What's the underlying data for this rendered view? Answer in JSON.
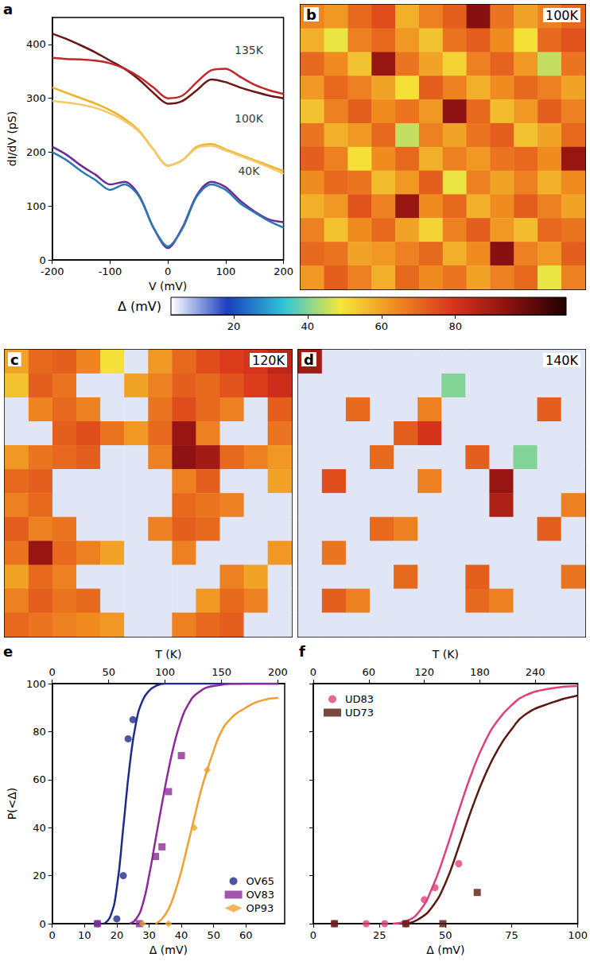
{
  "chart_data": [
    {
      "type": "line",
      "panel": "a",
      "xlabel": "V (mV)",
      "ylabel": "dI/dV (pS)",
      "xlim": [
        -200,
        200
      ],
      "xticks": [
        -200,
        -100,
        0,
        100,
        200
      ],
      "ylim": [
        0,
        450
      ],
      "yticks": [
        0,
        100,
        200,
        300,
        400
      ],
      "grid": false,
      "x": [
        -200,
        -175,
        -150,
        -125,
        -100,
        -75,
        -50,
        -25,
        0,
        25,
        50,
        75,
        100,
        125,
        150,
        175,
        200
      ],
      "series": [
        {
          "color": "#6e1414",
          "values": [
            420,
            410,
            398,
            385,
            370,
            355,
            335,
            310,
            290,
            295,
            315,
            335,
            330,
            320,
            312,
            305,
            300
          ]
        },
        {
          "color": "#c0282a",
          "values": [
            375,
            373,
            372,
            370,
            365,
            355,
            340,
            320,
            300,
            305,
            330,
            352,
            355,
            340,
            325,
            315,
            308
          ]
        },
        {
          "color": "#f0b020",
          "values": [
            320,
            310,
            300,
            290,
            278,
            262,
            240,
            205,
            175,
            185,
            210,
            215,
            205,
            195,
            185,
            175,
            165
          ]
        },
        {
          "color": "#f5c86a",
          "values": [
            295,
            292,
            288,
            282,
            272,
            258,
            238,
            205,
            175,
            185,
            208,
            212,
            203,
            193,
            183,
            172,
            160
          ]
        },
        {
          "color": "#6a2a9a",
          "values": [
            210,
            195,
            175,
            158,
            140,
            145,
            120,
            60,
            22,
            60,
            120,
            145,
            135,
            110,
            90,
            75,
            70
          ]
        },
        {
          "color": "#2a7ab0",
          "values": [
            200,
            185,
            165,
            148,
            130,
            140,
            118,
            60,
            25,
            58,
            118,
            140,
            130,
            105,
            88,
            72,
            60
          ]
        }
      ],
      "annotations": [
        {
          "text": "135K",
          "x": 140,
          "y": 390
        },
        {
          "text": "100K",
          "x": 140,
          "y": 262
        },
        {
          "text": "40K",
          "x": 140,
          "y": 165
        }
      ]
    },
    {
      "type": "heatmap",
      "panel": "b",
      "title": "100K",
      "cells": [
        [
          65,
          62,
          70,
          75,
          58,
          66,
          72,
          95,
          68,
          60,
          66,
          70
        ],
        [
          58,
          48,
          66,
          70,
          62,
          55,
          68,
          72,
          64,
          50,
          70,
          74
        ],
        [
          70,
          64,
          55,
          92,
          68,
          60,
          52,
          66,
          71,
          62,
          45,
          68
        ],
        [
          62,
          70,
          66,
          60,
          50,
          72,
          66,
          58,
          64,
          70,
          66,
          60
        ],
        [
          55,
          66,
          72,
          64,
          68,
          62,
          94,
          70,
          56,
          62,
          72,
          66
        ],
        [
          68,
          58,
          62,
          70,
          45,
          66,
          60,
          68,
          72,
          55,
          60,
          70
        ],
        [
          72,
          66,
          50,
          64,
          70,
          58,
          66,
          62,
          68,
          70,
          64,
          92
        ],
        [
          64,
          70,
          68,
          56,
          62,
          72,
          48,
          66,
          60,
          66,
          58,
          64
        ],
        [
          58,
          62,
          74,
          66,
          92,
          64,
          70,
          58,
          64,
          72,
          66,
          60
        ],
        [
          66,
          55,
          64,
          70,
          60,
          52,
          66,
          72,
          62,
          56,
          70,
          68
        ],
        [
          70,
          68,
          60,
          62,
          66,
          70,
          58,
          64,
          95,
          66,
          62,
          72
        ],
        [
          62,
          72,
          66,
          58,
          70,
          64,
          68,
          60,
          66,
          70,
          48,
          66
        ]
      ]
    },
    {
      "type": "colorbar",
      "title": "Δ (mV)",
      "range": [
        3,
        110
      ],
      "ticks": [
        20,
        40,
        60,
        80
      ]
    },
    {
      "type": "heatmap",
      "panel": "c",
      "title": "120K",
      "cells": [
        [
          60,
          70,
          72,
          65,
          50,
          5,
          62,
          70,
          75,
          78,
          80,
          85
        ],
        [
          55,
          72,
          68,
          5,
          5,
          60,
          66,
          72,
          70,
          74,
          78,
          82
        ],
        [
          5,
          65,
          70,
          66,
          5,
          5,
          68,
          75,
          70,
          66,
          5,
          72
        ],
        [
          5,
          5,
          72,
          75,
          68,
          62,
          70,
          92,
          66,
          5,
          5,
          68
        ],
        [
          62,
          68,
          70,
          72,
          5,
          5,
          66,
          94,
          90,
          70,
          66,
          62
        ],
        [
          70,
          72,
          5,
          5,
          5,
          5,
          5,
          66,
          72,
          5,
          5,
          60
        ],
        [
          66,
          70,
          5,
          5,
          5,
          5,
          5,
          70,
          68,
          66,
          5,
          5
        ],
        [
          72,
          66,
          68,
          5,
          5,
          5,
          66,
          72,
          70,
          5,
          5,
          5
        ],
        [
          68,
          92,
          70,
          66,
          60,
          5,
          5,
          66,
          5,
          5,
          5,
          62
        ],
        [
          60,
          70,
          66,
          5,
          5,
          5,
          5,
          5,
          5,
          66,
          60,
          5
        ],
        [
          66,
          72,
          68,
          70,
          5,
          5,
          5,
          5,
          62,
          70,
          66,
          5
        ],
        [
          70,
          68,
          66,
          64,
          62,
          5,
          5,
          66,
          70,
          72,
          5,
          5
        ]
      ]
    },
    {
      "type": "heatmap",
      "panel": "d",
      "title": "140K",
      "cells": [
        [
          90,
          5,
          5,
          5,
          5,
          5,
          5,
          5,
          5,
          5,
          5,
          5
        ],
        [
          5,
          5,
          5,
          5,
          5,
          5,
          40,
          5,
          5,
          5,
          5,
          5
        ],
        [
          5,
          5,
          70,
          5,
          5,
          66,
          5,
          5,
          5,
          5,
          72,
          5
        ],
        [
          5,
          5,
          5,
          5,
          72,
          80,
          5,
          5,
          5,
          5,
          5,
          5
        ],
        [
          5,
          5,
          5,
          70,
          5,
          5,
          5,
          72,
          5,
          40,
          5,
          5
        ],
        [
          5,
          75,
          5,
          5,
          5,
          66,
          5,
          5,
          92,
          5,
          5,
          5
        ],
        [
          5,
          5,
          5,
          5,
          5,
          5,
          5,
          5,
          88,
          5,
          5,
          66
        ],
        [
          5,
          5,
          5,
          70,
          66,
          5,
          5,
          5,
          5,
          5,
          72,
          5
        ],
        [
          5,
          68,
          5,
          5,
          5,
          5,
          5,
          5,
          5,
          5,
          5,
          5
        ],
        [
          5,
          5,
          5,
          5,
          70,
          5,
          5,
          72,
          5,
          5,
          5,
          68
        ],
        [
          5,
          72,
          66,
          5,
          5,
          5,
          5,
          70,
          66,
          5,
          5,
          5
        ],
        [
          5,
          5,
          5,
          5,
          5,
          5,
          5,
          5,
          5,
          5,
          5,
          5
        ]
      ]
    },
    {
      "type": "line",
      "panel": "e",
      "xlabel": "Δ (mV)",
      "x2label": "T (K)",
      "ylabel": "P(<Δ)",
      "xlim": [
        0,
        72
      ],
      "xticks": [
        0,
        10,
        20,
        30,
        40,
        50,
        60
      ],
      "x2lim": [
        0,
        206
      ],
      "x2ticks": [
        0,
        50,
        100,
        150,
        200
      ],
      "ylim": [
        0,
        100
      ],
      "yticks": [
        0,
        20,
        40,
        60,
        80,
        100
      ],
      "grid": false,
      "legend": "lower right",
      "series": [
        {
          "name": "OV65",
          "type": "scatter",
          "marker": "circle",
          "color": "#1f2a8c",
          "x": [
            14,
            20,
            22,
            23.5,
            25
          ],
          "values": [
            0,
            2,
            20,
            77,
            85
          ]
        },
        {
          "name": "OV65",
          "type": "line",
          "line_style": "solid",
          "color": "#1f2a8c",
          "x": [
            16,
            18,
            20,
            22,
            24,
            26,
            28,
            30,
            32,
            35,
            40,
            50,
            70
          ],
          "values": [
            0,
            3,
            15,
            40,
            66,
            84,
            93,
            97,
            99,
            100,
            100,
            100,
            100
          ]
        },
        {
          "name": "OV83",
          "type": "scatter",
          "marker": "square",
          "color": "#8c2a9a",
          "x": [
            14,
            27,
            32,
            34,
            36,
            40
          ],
          "values": [
            0,
            0,
            28,
            32,
            55,
            70
          ]
        },
        {
          "name": "OV83",
          "type": "line",
          "line_style": "solid",
          "color": "#8c2a9a",
          "x": [
            24,
            26,
            28,
            30,
            32,
            34,
            36,
            38,
            40,
            42,
            45,
            50,
            60,
            70
          ],
          "values": [
            0,
            2,
            8,
            20,
            35,
            50,
            64,
            76,
            85,
            91,
            96,
            99,
            100,
            100
          ]
        },
        {
          "name": "OP93",
          "type": "scatter",
          "marker": "diamond",
          "color": "#f0a030",
          "x": [
            28,
            36,
            44,
            48
          ],
          "values": [
            0,
            0,
            40,
            64
          ]
        },
        {
          "name": "OP93",
          "type": "line",
          "line_style": "solid",
          "color": "#f0a030",
          "x": [
            32,
            34,
            36,
            38,
            40,
            42,
            44,
            46,
            48,
            50,
            52,
            55,
            60,
            65,
            70
          ],
          "values": [
            0,
            2,
            6,
            13,
            22,
            33,
            44,
            55,
            64,
            72,
            79,
            85,
            90,
            93,
            94
          ]
        }
      ]
    },
    {
      "type": "line",
      "panel": "f",
      "xlabel": "Δ (mV)",
      "x2label": "T (K)",
      "xlim": [
        0,
        100
      ],
      "xticks": [
        0,
        25,
        50,
        75,
        100
      ],
      "x2lim": [
        0,
        286
      ],
      "x2ticks": [
        0,
        60,
        120,
        180,
        240
      ],
      "ylim": [
        0,
        100
      ],
      "yticks": [
        0,
        20,
        40,
        60,
        80,
        100
      ],
      "grid": false,
      "legend": "upper left",
      "tick_labels": "x",
      "series": [
        {
          "name": "UD83",
          "type": "scatter",
          "marker": "circle",
          "color": "#e0407a",
          "x": [
            8,
            20,
            27,
            35,
            42,
            46,
            55
          ],
          "values": [
            0,
            0,
            0,
            0,
            10,
            15,
            25
          ]
        },
        {
          "name": "UD83",
          "type": "line",
          "line_style": "solid",
          "color": "#e0407a",
          "x": [
            30,
            35,
            40,
            45,
            50,
            55,
            60,
            65,
            70,
            75,
            80,
            90,
            100
          ],
          "values": [
            0,
            1,
            5,
            15,
            30,
            47,
            63,
            76,
            85,
            91,
            95,
            98,
            99
          ]
        },
        {
          "name": "UD73",
          "type": "scatter",
          "marker": "square",
          "color": "#5a1a10",
          "x": [
            8,
            35,
            49,
            62
          ],
          "values": [
            0,
            0,
            0,
            13
          ]
        },
        {
          "name": "UD73",
          "type": "line",
          "line_style": "solid",
          "color": "#5a1a10",
          "x": [
            35,
            40,
            45,
            50,
            55,
            60,
            65,
            70,
            75,
            80,
            90,
            100
          ],
          "values": [
            0,
            2,
            7,
            17,
            32,
            48,
            62,
            73,
            81,
            87,
            92,
            95
          ]
        }
      ]
    }
  ]
}
